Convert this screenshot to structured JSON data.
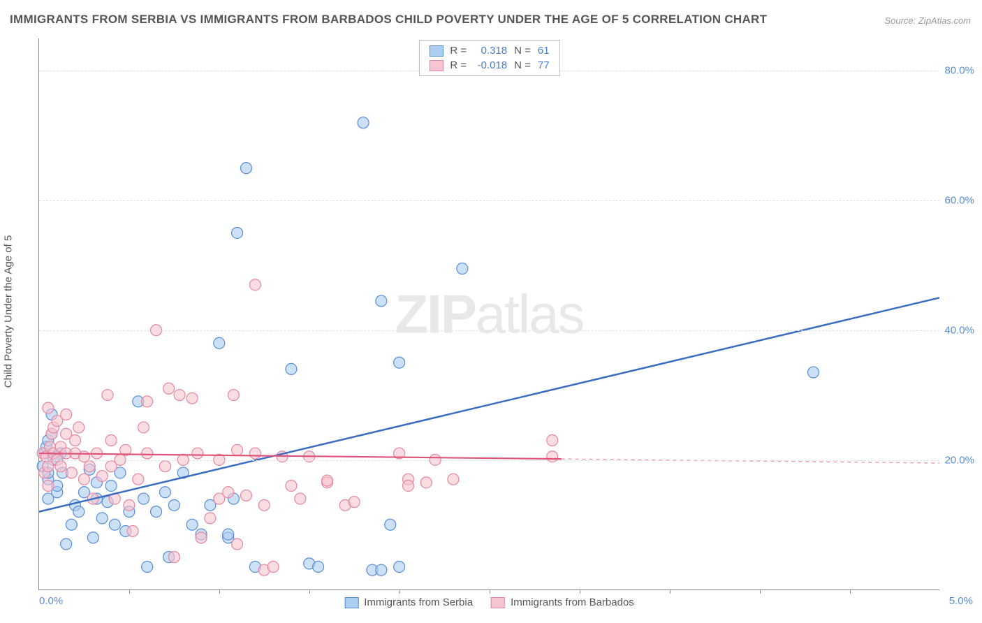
{
  "title": "IMMIGRANTS FROM SERBIA VS IMMIGRANTS FROM BARBADOS CHILD POVERTY UNDER THE AGE OF 5 CORRELATION CHART",
  "source": "Source: ZipAtlas.com",
  "y_axis_label": "Child Poverty Under the Age of 5",
  "watermark_bold": "ZIP",
  "watermark_rest": "atlas",
  "chart": {
    "type": "scatter",
    "xlim": [
      0,
      5.0
    ],
    "ylim": [
      0,
      85
    ],
    "x_ticks_labeled": {
      "0": "0.0%",
      "5": "5.0%"
    },
    "x_tick_marks": [
      0.5,
      1.0,
      1.5,
      2.0,
      2.5,
      3.0,
      3.5,
      4.0,
      4.5
    ],
    "y_ticks": [
      20,
      40,
      60,
      80
    ],
    "y_tick_labels": [
      "20.0%",
      "40.0%",
      "60.0%",
      "80.0%"
    ],
    "grid_color": "#e0e0e0",
    "plot_bg": "#ffffff",
    "series": [
      {
        "name": "Immigrants from Serbia",
        "fill": "#aacdf0",
        "stroke": "#5a8cd6",
        "marker_r": 8,
        "fill_opacity": 0.6,
        "R": "0.318",
        "N": "61",
        "trend": {
          "y_at_x0": 12,
          "y_at_x5": 45,
          "x_solid_end": 5.0,
          "color": "#3a6cc0",
          "width": 2.5
        },
        "points": [
          [
            0.02,
            19
          ],
          [
            0.03,
            21
          ],
          [
            0.04,
            22
          ],
          [
            0.05,
            17
          ],
          [
            0.05,
            23
          ],
          [
            0.05,
            14
          ],
          [
            0.07,
            27
          ],
          [
            0.08,
            20
          ],
          [
            0.1,
            15
          ],
          [
            0.1,
            16
          ],
          [
            0.12,
            21
          ],
          [
            0.13,
            18
          ],
          [
            0.15,
            7
          ],
          [
            0.18,
            10
          ],
          [
            0.2,
            13
          ],
          [
            0.22,
            12
          ],
          [
            0.25,
            15
          ],
          [
            0.28,
            18.5
          ],
          [
            0.3,
            8
          ],
          [
            0.32,
            14
          ],
          [
            0.35,
            11
          ],
          [
            0.38,
            13.5
          ],
          [
            0.4,
            16
          ],
          [
            0.42,
            10
          ],
          [
            0.45,
            18
          ],
          [
            0.48,
            9
          ],
          [
            0.5,
            12
          ],
          [
            0.55,
            29
          ],
          [
            0.58,
            14
          ],
          [
            0.6,
            3.5
          ],
          [
            0.65,
            12
          ],
          [
            0.7,
            15
          ],
          [
            0.72,
            5
          ],
          [
            0.75,
            13
          ],
          [
            0.8,
            18
          ],
          [
            0.85,
            10
          ],
          [
            0.9,
            8.5
          ],
          [
            0.95,
            13
          ],
          [
            1.0,
            38
          ],
          [
            1.05,
            8
          ],
          [
            1.05,
            8.5
          ],
          [
            1.08,
            14
          ],
          [
            1.1,
            55
          ],
          [
            1.15,
            65
          ],
          [
            1.2,
            3.5
          ],
          [
            1.4,
            34
          ],
          [
            1.5,
            4
          ],
          [
            1.55,
            3.5
          ],
          [
            1.8,
            72
          ],
          [
            1.85,
            3
          ],
          [
            1.9,
            44.5
          ],
          [
            1.9,
            3
          ],
          [
            1.95,
            10
          ],
          [
            2.0,
            3.5
          ],
          [
            2.0,
            35
          ],
          [
            2.35,
            49.5
          ],
          [
            0.05,
            18
          ],
          [
            0.07,
            24
          ],
          [
            0.1,
            20.5
          ],
          [
            0.32,
            16.5
          ],
          [
            4.3,
            33.5
          ]
        ]
      },
      {
        "name": "Immigrants from Barbados",
        "fill": "#f7c5d1",
        "stroke": "#e685a0",
        "marker_r": 8,
        "fill_opacity": 0.6,
        "R": "-0.018",
        "N": "77",
        "trend": {
          "y_at_x0": 21,
          "y_at_x5": 19.5,
          "x_solid_end": 2.9,
          "color": "#e0527a",
          "width": 2.2
        },
        "points": [
          [
            0.02,
            21
          ],
          [
            0.03,
            18
          ],
          [
            0.04,
            20.5
          ],
          [
            0.05,
            19
          ],
          [
            0.05,
            28
          ],
          [
            0.06,
            22
          ],
          [
            0.07,
            24
          ],
          [
            0.08,
            21
          ],
          [
            0.08,
            25
          ],
          [
            0.1,
            26
          ],
          [
            0.1,
            20
          ],
          [
            0.12,
            19
          ],
          [
            0.12,
            22
          ],
          [
            0.15,
            24
          ],
          [
            0.15,
            21
          ],
          [
            0.18,
            18
          ],
          [
            0.2,
            23
          ],
          [
            0.2,
            21
          ],
          [
            0.22,
            25
          ],
          [
            0.25,
            20.5
          ],
          [
            0.25,
            17
          ],
          [
            0.28,
            19
          ],
          [
            0.3,
            14
          ],
          [
            0.32,
            21
          ],
          [
            0.35,
            17.5
          ],
          [
            0.38,
            30
          ],
          [
            0.4,
            19
          ],
          [
            0.4,
            23
          ],
          [
            0.42,
            14
          ],
          [
            0.45,
            20
          ],
          [
            0.48,
            21.5
          ],
          [
            0.5,
            13
          ],
          [
            0.52,
            9
          ],
          [
            0.55,
            17
          ],
          [
            0.58,
            25
          ],
          [
            0.6,
            21
          ],
          [
            0.6,
            29
          ],
          [
            0.65,
            40
          ],
          [
            0.7,
            19
          ],
          [
            0.72,
            31
          ],
          [
            0.75,
            5
          ],
          [
            0.78,
            30
          ],
          [
            0.8,
            20
          ],
          [
            0.85,
            29.5
          ],
          [
            0.88,
            21
          ],
          [
            0.9,
            8
          ],
          [
            0.95,
            11
          ],
          [
            1.0,
            14
          ],
          [
            1.0,
            20
          ],
          [
            1.05,
            15
          ],
          [
            1.08,
            30
          ],
          [
            1.1,
            21.5
          ],
          [
            1.1,
            7
          ],
          [
            1.15,
            14.5
          ],
          [
            1.2,
            21
          ],
          [
            1.2,
            47
          ],
          [
            1.25,
            13
          ],
          [
            1.25,
            3
          ],
          [
            1.3,
            3.5
          ],
          [
            1.35,
            20.5
          ],
          [
            1.4,
            16
          ],
          [
            1.45,
            14
          ],
          [
            1.5,
            20.5
          ],
          [
            1.6,
            16.5
          ],
          [
            1.6,
            16.8
          ],
          [
            1.7,
            13
          ],
          [
            1.75,
            13.5
          ],
          [
            2.0,
            21
          ],
          [
            2.05,
            17
          ],
          [
            2.05,
            16
          ],
          [
            2.15,
            16.5
          ],
          [
            2.2,
            20
          ],
          [
            2.3,
            17
          ],
          [
            2.85,
            23
          ],
          [
            2.85,
            20.5
          ],
          [
            0.05,
            16
          ],
          [
            0.15,
            27
          ]
        ]
      }
    ]
  },
  "legend_top": [
    {
      "swatch": "blue",
      "R_label": "R =",
      "R": "0.318",
      "N_label": "N =",
      "N": "61"
    },
    {
      "swatch": "pink",
      "R_label": "R =",
      "R": "-0.018",
      "N_label": "N =",
      "N": "77"
    }
  ],
  "legend_bottom": [
    {
      "swatch": "blue",
      "label": "Immigrants from Serbia"
    },
    {
      "swatch": "pink",
      "label": "Immigrants from Barbados"
    }
  ]
}
